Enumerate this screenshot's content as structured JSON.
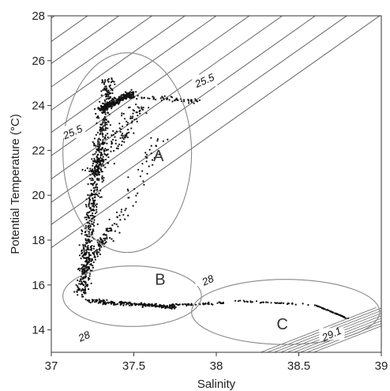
{
  "chart_data": {
    "type": "scatter",
    "title": "",
    "xlabel": "Salinity",
    "ylabel": "Potential Temperature (°C)",
    "xlim": [
      37,
      39
    ],
    "ylim": [
      13,
      28
    ],
    "x_ticks": [
      "37",
      "37.5",
      "38",
      "38.5",
      "39"
    ],
    "y_ticks": [
      "14",
      "16",
      "18",
      "20",
      "22",
      "24",
      "26",
      "28"
    ],
    "grid": false,
    "legend": "none",
    "density_contours": {
      "labeled": [
        {
          "text": "25.5",
          "sigma": 25.5,
          "label_at": [
            37.93,
            25.1
          ]
        },
        {
          "text": "25.5",
          "sigma": 25.5,
          "label_at": [
            37.13,
            22.8
          ]
        },
        {
          "text": "28",
          "sigma": 28.0,
          "label_at": [
            37.95,
            16.2
          ]
        },
        {
          "text": "28",
          "sigma": 28.0,
          "label_at": [
            37.2,
            13.7
          ]
        },
        {
          "text": "29.1",
          "sigma": 29.1,
          "label_at": [
            38.7,
            13.8
          ]
        }
      ],
      "lines_intercept_salinity_at_28C": [
        37.02,
        37.22,
        37.41,
        37.61,
        37.81,
        38.0,
        38.2,
        38.4,
        38.6,
        38.79,
        38.99
      ],
      "slope_salinity_per_degree": 0.1925,
      "dense_lines_intercept_salinity_at_14C": [
        38.62,
        38.66,
        38.7,
        38.74,
        38.78,
        38.82,
        38.86,
        38.9,
        38.94
      ]
    },
    "regions": [
      {
        "label": "A",
        "center": [
          37.46,
          21.9
        ],
        "radius_salinity": 0.39,
        "radius_temperature": 4.45,
        "label_at": [
          37.65,
          21.7
        ]
      },
      {
        "label": "B",
        "center": [
          37.49,
          15.5
        ],
        "radius_salinity": 0.42,
        "radius_temperature": 1.35,
        "label_at": [
          37.66,
          16.2
        ]
      },
      {
        "label": "C",
        "center": [
          38.42,
          14.8
        ],
        "radius_salinity": 0.57,
        "radius_temperature": 1.45,
        "label_at": [
          38.4,
          14.2
        ]
      }
    ],
    "series": [
      {
        "segments": [
          {
            "from": [
              37.18,
              15.5
            ],
            "to": [
              37.35,
              25.2
            ],
            "spread_salinity": 0.06,
            "count": 650
          },
          {
            "from": [
              37.3,
              23.8
            ],
            "to": [
              37.5,
              24.6
            ],
            "spread_salinity": 0.05,
            "count": 240
          },
          {
            "from": [
              37.25,
              21.0
            ],
            "to": [
              37.55,
              24.0
            ],
            "spread_salinity": 0.1,
            "count": 140
          },
          {
            "from": [
              37.45,
              24.4
            ],
            "to": [
              37.9,
              24.2
            ],
            "spread_salinity": 0.06,
            "count": 60
          },
          {
            "from": [
              37.35,
              18.0
            ],
            "to": [
              37.65,
              22.5
            ],
            "spread_salinity": 0.08,
            "count": 60
          },
          {
            "from": [
              37.2,
              16.5
            ],
            "to": [
              37.35,
              18.5
            ],
            "spread_salinity": 0.04,
            "count": 120
          },
          {
            "from": [
              37.22,
              15.3
            ],
            "to": [
              37.75,
              15.0
            ],
            "spread_salinity": 0.05,
            "count": 200
          },
          {
            "from": [
              37.7,
              15.1
            ],
            "to": [
              38.05,
              15.2
            ],
            "spread_salinity": 0.03,
            "count": 50
          },
          {
            "from": [
              38.1,
              15.3
            ],
            "to": [
              38.6,
              15.1
            ],
            "spread_salinity": 0.02,
            "count": 35
          },
          {
            "from": [
              38.6,
              15.1
            ],
            "to": [
              38.8,
              14.5
            ],
            "spread_salinity": 0.006,
            "count": 60
          }
        ]
      }
    ]
  }
}
